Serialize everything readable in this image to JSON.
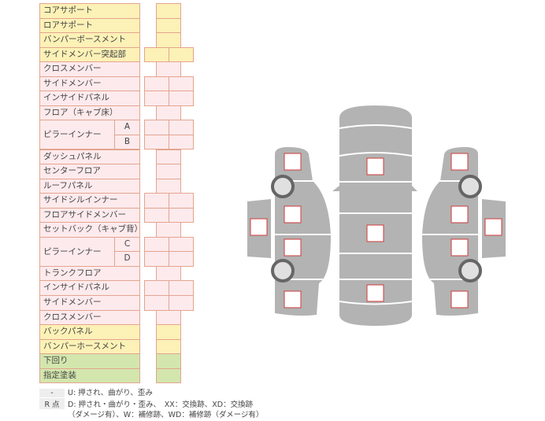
{
  "rows": [
    {
      "label": "コアサポート",
      "color": "y",
      "cells": 1
    },
    {
      "label": "ロアサポート",
      "color": "y",
      "cells": 1
    },
    {
      "label": "バンパーボースメント",
      "color": "y",
      "cells": 1
    },
    {
      "label": "サイドメンバー突起部",
      "color": "y",
      "cells": 2
    },
    {
      "label": "クロスメンバー",
      "color": "p",
      "cells": 1
    },
    {
      "label": "サイドメンバー",
      "color": "p",
      "cells": 2
    },
    {
      "label": "インサイドパネル",
      "color": "p",
      "cells": 2
    },
    {
      "label": "フロア（キャブ床）",
      "color": "p",
      "cells": 1
    },
    {
      "label": "ピラーインナー",
      "sub": "A",
      "color": "p",
      "cells": 2
    },
    {
      "label": "",
      "sub": "B",
      "color": "p",
      "cells": 2
    },
    {
      "label": "ダッシュパネル",
      "color": "p",
      "cells": 1
    },
    {
      "label": "センターフロア",
      "color": "p",
      "cells": 1
    },
    {
      "label": "ルーフパネル",
      "color": "p",
      "cells": 1
    },
    {
      "label": "サイドシルインナー",
      "color": "p",
      "cells": 2
    },
    {
      "label": "フロアサイドメンバー",
      "color": "p",
      "cells": 2
    },
    {
      "label": "セットバック（キャブ背）",
      "color": "p",
      "cells": 1
    },
    {
      "label": "ピラーインナー",
      "sub": "C",
      "color": "p",
      "cells": 2
    },
    {
      "label": "",
      "sub": "D",
      "color": "p",
      "cells": 2
    },
    {
      "label": "トランクフロア",
      "color": "p",
      "cells": 1
    },
    {
      "label": "インサイドパネル",
      "color": "p",
      "cells": 2
    },
    {
      "label": "サイドメンバー",
      "color": "p",
      "cells": 2
    },
    {
      "label": "クロスメンバー",
      "color": "p",
      "cells": 1
    },
    {
      "label": "バックパネル",
      "color": "y",
      "cells": 1
    },
    {
      "label": "バンパーホースメント",
      "color": "y",
      "cells": 1
    },
    {
      "label": "下回り",
      "color": "g",
      "cells": 1
    },
    {
      "label": "指定塗装",
      "color": "g",
      "cells": 1
    }
  ],
  "legend": [
    {
      "key": "-",
      "text": "U: 押され、曲がり、歪み"
    },
    {
      "key": "R 点",
      "text": "D: 押され・曲がり・歪み、　XX：交換跡、XD：交換跡",
      "text2": "（ダメージ有）、W：補修跡、WD：補修跡（ダメージ有）"
    }
  ],
  "colors": {
    "yellow": "#fcf1b6",
    "pink": "#fdeaec",
    "green": "#d3e6ad",
    "border": "#e3a58f",
    "car": "#b3b3b3",
    "marker": "#d23a3a"
  }
}
